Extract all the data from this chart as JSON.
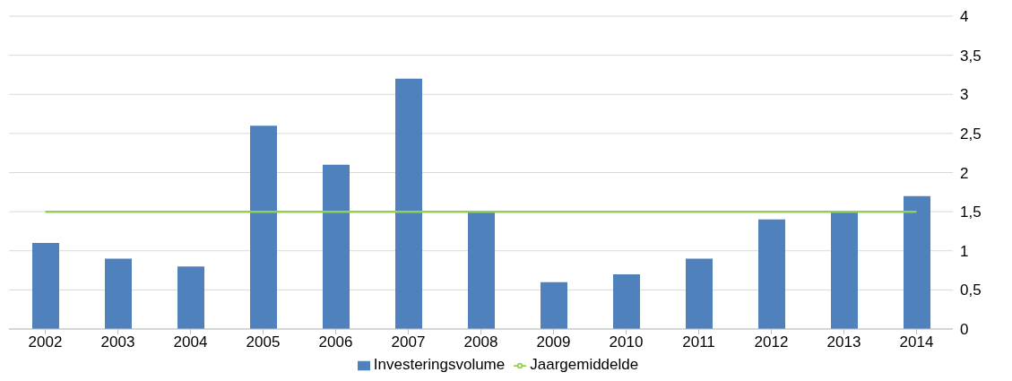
{
  "chart_data": {
    "type": "bar",
    "categories": [
      "2002",
      "2003",
      "2004",
      "2005",
      "2006",
      "2007",
      "2008",
      "2009",
      "2010",
      "2011",
      "2012",
      "2013",
      "2014"
    ],
    "series": [
      {
        "name": "Investeringsvolume",
        "color": "#4f81bd",
        "values": [
          1.1,
          0.9,
          0.8,
          2.6,
          2.1,
          3.2,
          1.5,
          0.6,
          0.7,
          0.9,
          1.4,
          1.5,
          1.7
        ]
      },
      {
        "name": "Jaargemiddelde",
        "type": "line",
        "color": "#92d050",
        "values": [
          1.5,
          1.5,
          1.5,
          1.5,
          1.5,
          1.5,
          1.5,
          1.5,
          1.5,
          1.5,
          1.5,
          1.5,
          1.5
        ]
      }
    ],
    "ylim": [
      0,
      4
    ],
    "yticks": [
      0,
      {
        "value": 0.5,
        "label": "0,5"
      },
      1,
      {
        "value": 1.5,
        "label": "1,5"
      },
      2,
      {
        "value": 2.5,
        "label": "2,5"
      },
      3,
      {
        "value": 3.5,
        "label": "3,5"
      },
      4
    ],
    "grid": "y",
    "legend": "bottom",
    "marker": "none"
  }
}
